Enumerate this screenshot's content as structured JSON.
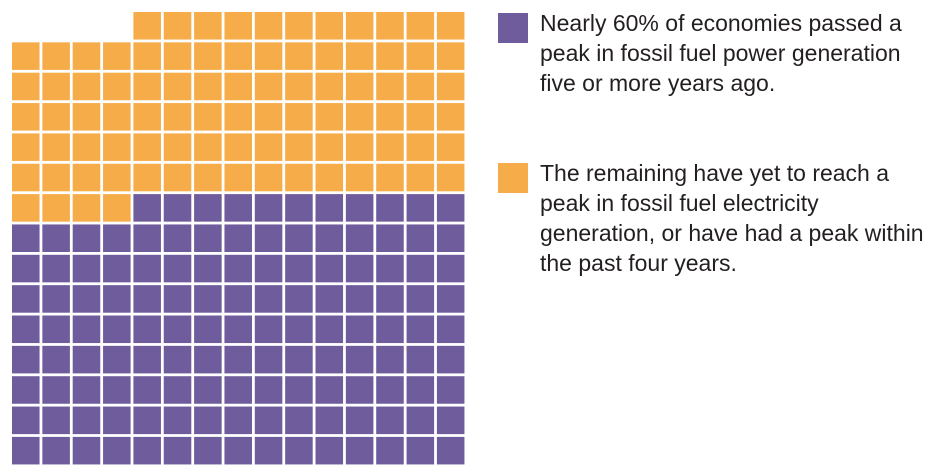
{
  "chart_data": {
    "type": "waffle",
    "grid": {
      "rows": 15,
      "columns": 15
    },
    "series": [
      {
        "name": "Nearly 60% of economies passed a peak in fossil fuel power generation five or more years ago.",
        "count": 131,
        "color": "#6f5c9c"
      },
      {
        "name": "The remaining have yet to reach a peak in fossil fuel electricity generation, or have had a peak within the past four years.",
        "count": 90,
        "color": "#f7ac4a"
      }
    ],
    "legend_position": "right"
  }
}
